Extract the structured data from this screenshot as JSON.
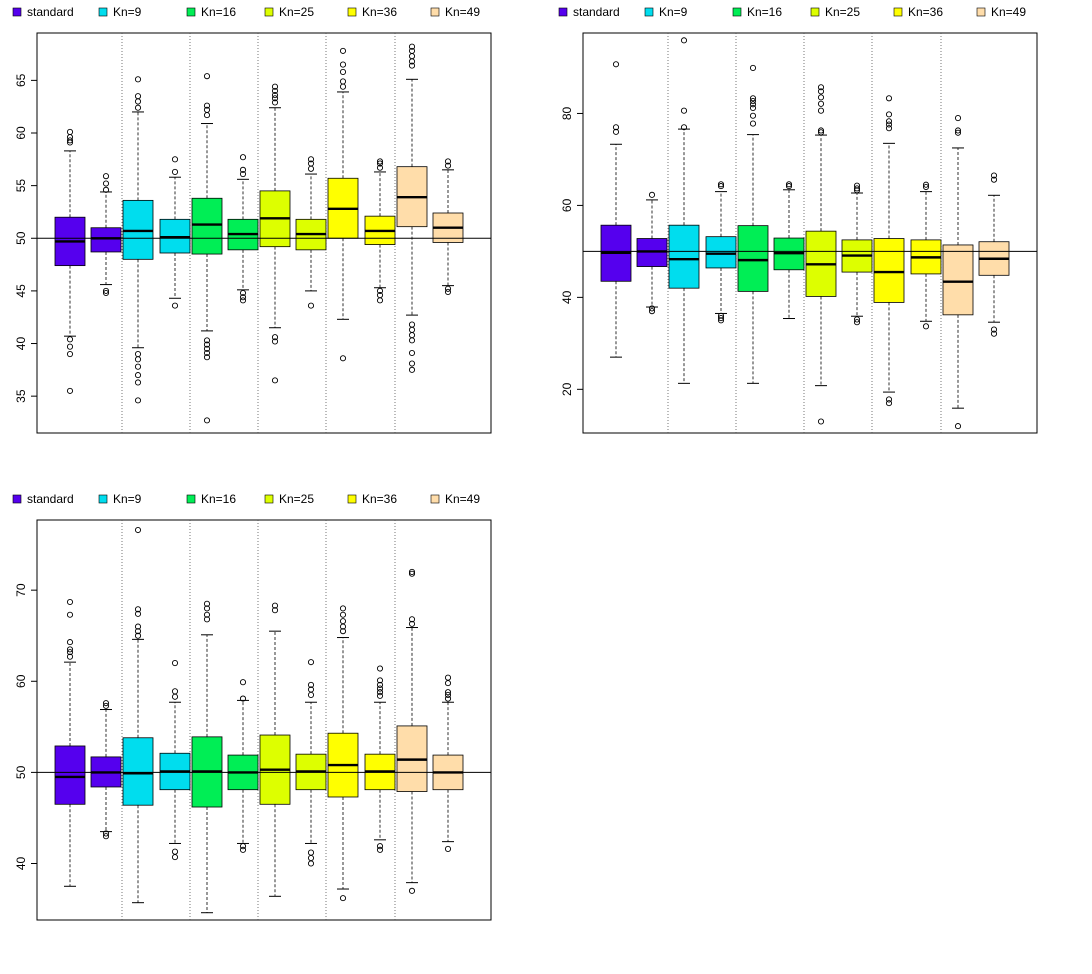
{
  "legend_labels": [
    "standard",
    "Kn=9",
    "Kn=16",
    "Kn=25",
    "Kn=36",
    "Kn=49"
  ],
  "colors": [
    "#5500ee",
    "#00ddee",
    "#00ee55",
    "#ddff00",
    "#ffff00",
    "#ffddaa"
  ],
  "chart_data": [
    {
      "type": "boxplot",
      "ylim": [
        31.5,
        69.5
      ],
      "yticks": [
        35,
        40,
        45,
        50,
        55,
        60,
        65
      ],
      "ytick_labels": [
        "35",
        "40",
        "45",
        "50",
        "55",
        "60",
        "65"
      ],
      "reference_line": 50,
      "boxes": [
        {
          "group": 0,
          "whisker_low": 40.7,
          "q1": 47.4,
          "median": 49.7,
          "q3": 52.0,
          "whisker_high": 58.3,
          "outliers": [
            35.5,
            39.0,
            39.7,
            40.4,
            59.1,
            59.3,
            59.6,
            60.1
          ]
        },
        {
          "group": 0,
          "whisker_low": 45.6,
          "q1": 48.7,
          "median": 50.0,
          "q3": 51.0,
          "whisker_high": 54.4,
          "outliers": [
            44.8,
            45.0,
            54.6,
            55.2,
            55.9
          ]
        },
        {
          "group": 1,
          "whisker_low": 39.6,
          "q1": 48.0,
          "median": 50.7,
          "q3": 53.6,
          "whisker_high": 62.0,
          "outliers": [
            34.6,
            36.3,
            37.0,
            37.8,
            38.5,
            39.0,
            62.4,
            63.0,
            63.5,
            65.1
          ]
        },
        {
          "group": 1,
          "whisker_low": 44.3,
          "q1": 48.6,
          "median": 50.1,
          "q3": 51.8,
          "whisker_high": 55.8,
          "outliers": [
            43.6,
            56.3,
            57.5
          ]
        },
        {
          "group": 2,
          "whisker_low": 41.2,
          "q1": 48.5,
          "median": 51.3,
          "q3": 53.8,
          "whisker_high": 60.9,
          "outliers": [
            32.7,
            38.7,
            39.1,
            39.5,
            39.9,
            40.3,
            61.7,
            62.2,
            62.6,
            65.4
          ]
        },
        {
          "group": 2,
          "whisker_low": 45.1,
          "q1": 48.9,
          "median": 50.4,
          "q3": 51.8,
          "whisker_high": 55.6,
          "outliers": [
            44.1,
            44.4,
            44.8,
            56.1,
            56.5,
            57.7
          ]
        },
        {
          "group": 3,
          "whisker_low": 41.5,
          "q1": 49.2,
          "median": 51.9,
          "q3": 54.5,
          "whisker_high": 62.4,
          "outliers": [
            36.5,
            40.2,
            40.6,
            62.9,
            63.3,
            63.6,
            64.0,
            64.4
          ]
        },
        {
          "group": 3,
          "whisker_low": 45.0,
          "q1": 48.9,
          "median": 50.4,
          "q3": 51.8,
          "whisker_high": 56.1,
          "outliers": [
            43.6,
            56.6,
            57.1,
            57.5
          ]
        },
        {
          "group": 4,
          "whisker_low": 42.3,
          "q1": 50.0,
          "median": 52.8,
          "q3": 55.7,
          "whisker_high": 63.9,
          "outliers": [
            38.6,
            64.4,
            64.9,
            65.8,
            66.5,
            67.8
          ]
        },
        {
          "group": 4,
          "whisker_low": 45.3,
          "q1": 49.4,
          "median": 50.7,
          "q3": 52.1,
          "whisker_high": 56.3,
          "outliers": [
            44.1,
            44.6,
            45.0,
            56.7,
            57.1,
            57.3
          ]
        },
        {
          "group": 5,
          "whisker_low": 42.7,
          "q1": 51.1,
          "median": 53.9,
          "q3": 56.8,
          "whisker_high": 65.1,
          "outliers": [
            37.5,
            38.1,
            39.1,
            40.3,
            40.8,
            41.3,
            41.8,
            66.4,
            66.8,
            67.3,
            67.8,
            68.2
          ]
        },
        {
          "group": 5,
          "whisker_low": 45.5,
          "q1": 49.6,
          "median": 51.0,
          "q3": 52.4,
          "whisker_high": 56.5,
          "outliers": [
            44.9,
            45.2,
            56.9,
            57.3
          ]
        }
      ]
    },
    {
      "type": "boxplot",
      "ylim": [
        10.5,
        97.5
      ],
      "yticks": [
        20,
        40,
        60,
        80
      ],
      "ytick_labels": [
        "20",
        "40",
        "60",
        "80"
      ],
      "reference_line": 50,
      "boxes": [
        {
          "group": 0,
          "whisker_low": 27.0,
          "q1": 43.5,
          "median": 49.7,
          "q3": 55.7,
          "whisker_high": 73.3,
          "outliers": [
            76.0,
            77.0,
            90.7
          ]
        },
        {
          "group": 0,
          "whisker_low": 37.9,
          "q1": 46.7,
          "median": 50.0,
          "q3": 52.8,
          "whisker_high": 61.2,
          "outliers": [
            37.0,
            37.6,
            62.3
          ]
        },
        {
          "group": 1,
          "whisker_low": 21.3,
          "q1": 42.0,
          "median": 48.3,
          "q3": 55.7,
          "whisker_high": 76.6,
          "outliers": [
            77.0,
            80.6,
            95.9
          ]
        },
        {
          "group": 1,
          "whisker_low": 36.5,
          "q1": 46.4,
          "median": 49.5,
          "q3": 53.2,
          "whisker_high": 63.0,
          "outliers": [
            35.0,
            35.5,
            36.0,
            64.2,
            64.6
          ]
        },
        {
          "group": 2,
          "whisker_low": 21.3,
          "q1": 41.3,
          "median": 48.1,
          "q3": 55.6,
          "whisker_high": 75.4,
          "outliers": [
            77.8,
            79.5,
            81.2,
            82.0,
            82.7,
            83.3,
            89.9
          ]
        },
        {
          "group": 2,
          "whisker_low": 35.4,
          "q1": 46.0,
          "median": 49.6,
          "q3": 52.9,
          "whisker_high": 63.4,
          "outliers": [
            64.2,
            64.6
          ]
        },
        {
          "group": 3,
          "whisker_low": 20.8,
          "q1": 40.2,
          "median": 47.2,
          "q3": 54.4,
          "whisker_high": 75.3,
          "outliers": [
            13.0,
            75.9,
            76.3,
            80.6,
            82.1,
            83.5,
            84.8,
            85.7
          ]
        },
        {
          "group": 3,
          "whisker_low": 35.9,
          "q1": 45.5,
          "median": 49.1,
          "q3": 52.5,
          "whisker_high": 62.7,
          "outliers": [
            34.6,
            35.2,
            63.3,
            63.7,
            64.3
          ]
        },
        {
          "group": 4,
          "whisker_low": 19.4,
          "q1": 38.9,
          "median": 45.5,
          "q3": 52.8,
          "whisker_high": 73.5,
          "outliers": [
            17.0,
            17.8,
            76.8,
            77.6,
            78.3,
            79.8,
            83.3
          ]
        },
        {
          "group": 4,
          "whisker_low": 34.8,
          "q1": 45.1,
          "median": 48.7,
          "q3": 52.5,
          "whisker_high": 63.0,
          "outliers": [
            33.7,
            64.0,
            64.5
          ]
        },
        {
          "group": 5,
          "whisker_low": 15.9,
          "q1": 36.2,
          "median": 43.4,
          "q3": 51.4,
          "whisker_high": 72.5,
          "outliers": [
            12.0,
            75.8,
            76.3,
            79.0
          ]
        },
        {
          "group": 5,
          "whisker_low": 34.6,
          "q1": 44.8,
          "median": 48.4,
          "q3": 52.1,
          "whisker_high": 62.2,
          "outliers": [
            32.1,
            33.0,
            65.6,
            66.5
          ]
        }
      ]
    },
    {
      "type": "boxplot",
      "ylim": [
        33.8,
        77.7
      ],
      "yticks": [
        40,
        50,
        60,
        70
      ],
      "ytick_labels": [
        "40",
        "50",
        "60",
        "70"
      ],
      "reference_line": 50,
      "boxes": [
        {
          "group": 0,
          "whisker_low": 37.5,
          "q1": 46.5,
          "median": 49.5,
          "q3": 52.9,
          "whisker_high": 62.1,
          "outliers": [
            62.7,
            63.2,
            63.5,
            64.3,
            67.3,
            68.7
          ]
        },
        {
          "group": 0,
          "whisker_low": 43.5,
          "q1": 48.4,
          "median": 50.0,
          "q3": 51.7,
          "whisker_high": 56.9,
          "outliers": [
            43.0,
            43.3,
            57.3,
            57.6
          ]
        },
        {
          "group": 1,
          "whisker_low": 35.7,
          "q1": 46.4,
          "median": 49.9,
          "q3": 53.8,
          "whisker_high": 64.6,
          "outliers": [
            65.0,
            65.5,
            66.0,
            67.4,
            67.9,
            76.6
          ]
        },
        {
          "group": 1,
          "whisker_low": 42.2,
          "q1": 48.1,
          "median": 50.1,
          "q3": 52.1,
          "whisker_high": 57.7,
          "outliers": [
            40.7,
            41.3,
            58.3,
            58.9,
            62.0
          ]
        },
        {
          "group": 2,
          "whisker_low": 34.6,
          "q1": 46.2,
          "median": 50.1,
          "q3": 53.9,
          "whisker_high": 65.1,
          "outliers": [
            66.8,
            67.3,
            68.0,
            68.5
          ]
        },
        {
          "group": 2,
          "whisker_low": 42.2,
          "q1": 48.1,
          "median": 50.0,
          "q3": 51.9,
          "whisker_high": 57.9,
          "outliers": [
            41.5,
            41.9,
            58.1,
            59.9
          ]
        },
        {
          "group": 3,
          "whisker_low": 36.4,
          "q1": 46.5,
          "median": 50.3,
          "q3": 54.1,
          "whisker_high": 65.5,
          "outliers": [
            67.8,
            68.3
          ]
        },
        {
          "group": 3,
          "whisker_low": 42.2,
          "q1": 48.1,
          "median": 50.1,
          "q3": 52.0,
          "whisker_high": 57.7,
          "outliers": [
            40.0,
            40.6,
            41.2,
            58.5,
            59.1,
            59.6,
            62.1
          ]
        },
        {
          "group": 4,
          "whisker_low": 37.2,
          "q1": 47.3,
          "median": 50.8,
          "q3": 54.3,
          "whisker_high": 64.8,
          "outliers": [
            36.2,
            65.5,
            66.0,
            66.6,
            67.3,
            68.0
          ]
        },
        {
          "group": 4,
          "whisker_low": 42.6,
          "q1": 48.1,
          "median": 50.1,
          "q3": 52.0,
          "whisker_high": 57.7,
          "outliers": [
            41.5,
            41.9,
            58.4,
            58.8,
            59.2,
            59.6,
            60.1,
            61.4
          ]
        },
        {
          "group": 5,
          "whisker_low": 37.9,
          "q1": 47.9,
          "median": 51.4,
          "q3": 55.1,
          "whisker_high": 65.9,
          "outliers": [
            37.0,
            66.3,
            66.8,
            71.8,
            72.0
          ]
        },
        {
          "group": 5,
          "whisker_low": 42.4,
          "q1": 48.1,
          "median": 50.0,
          "q3": 51.9,
          "whisker_high": 57.7,
          "outliers": [
            41.6,
            58.1,
            58.5,
            58.8,
            59.8,
            60.4
          ]
        }
      ]
    }
  ]
}
